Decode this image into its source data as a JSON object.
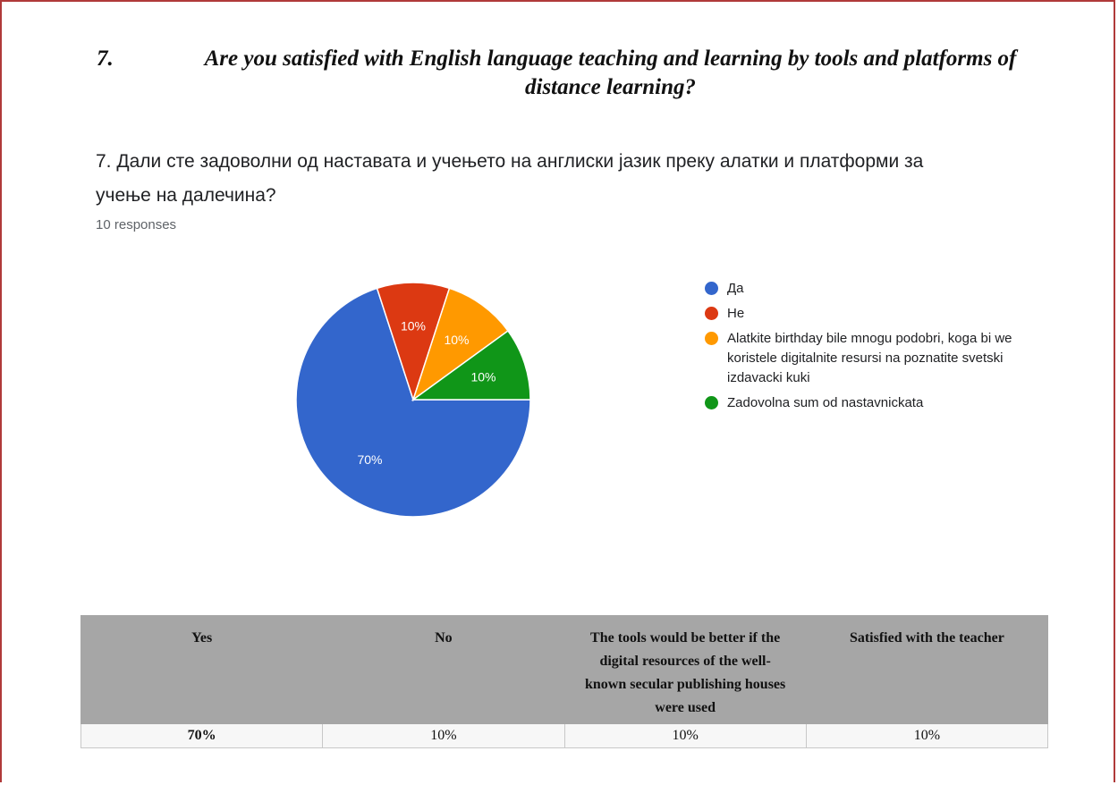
{
  "heading": {
    "number": "7.",
    "text": "Are you satisfied with English language teaching and learning by tools and platforms of distance learning?"
  },
  "question": {
    "title": "7. Дали сте задоволни од наставата и учењето на англиски јазик преку алатки и платформи за учење на далечина?",
    "responses": "10 responses"
  },
  "chart_data": {
    "type": "pie",
    "categories": [
      "Да",
      "Не",
      "Alatkite birthday bile mnogu podobri, koga bi we koristele digitalnite resursi na poznatite svetski izdavacki kuki",
      "Zadovolna sum od nastavnickata"
    ],
    "values": [
      70,
      10,
      10,
      10
    ],
    "labels": [
      "70%",
      "10%",
      "10%",
      "10%"
    ],
    "colors": [
      "#3366cc",
      "#dc3912",
      "#ff9900",
      "#109618"
    ],
    "legend_position": "right"
  },
  "table": {
    "headers": [
      "Yes",
      "No",
      "The tools would be better if the digital resources of the well-known secular publishing houses were used",
      "Satisfied with the teacher"
    ],
    "values": [
      "70%",
      "10%",
      "10%",
      "10%"
    ]
  }
}
